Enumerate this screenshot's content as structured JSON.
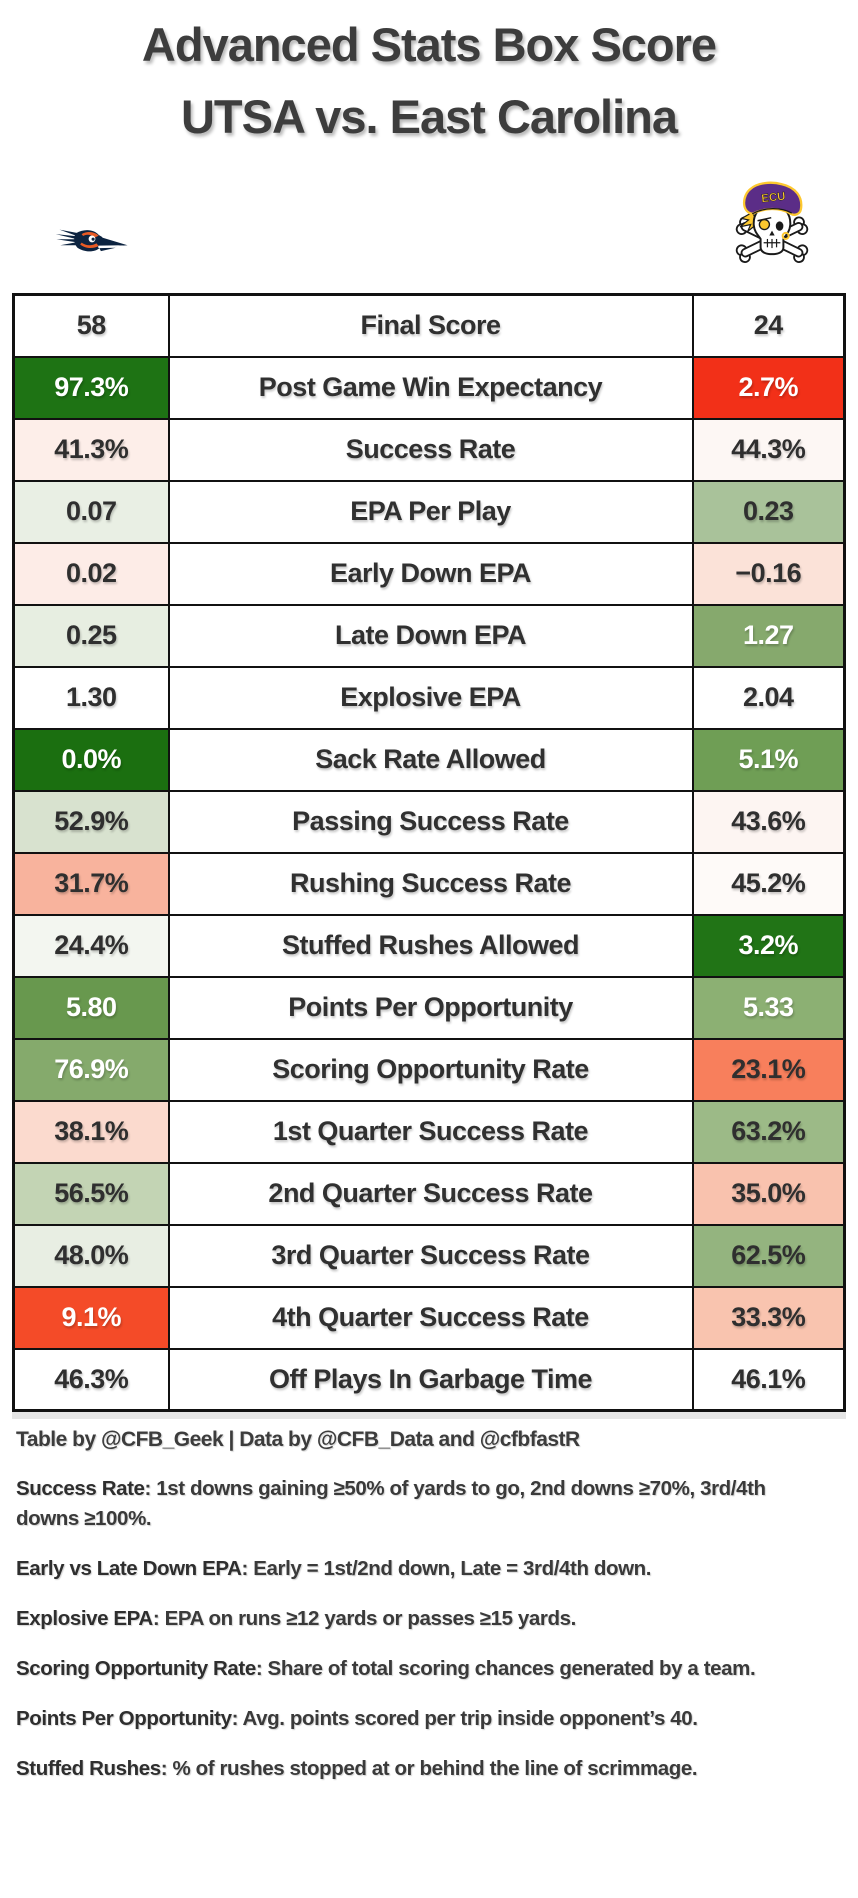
{
  "title": {
    "line1": "Advanced Stats Box Score",
    "line2": "UTSA vs. East Carolina"
  },
  "teams": {
    "left": "UTSA",
    "right": "East Carolina"
  },
  "credit": "Table by @CFB_Geek | Data by @CFB_Data and @cfbfastR",
  "colors": {
    "strong_green": "#1e7314",
    "strong_red": "#f23018",
    "orange_red": "#f44b28",
    "coral": "#f87f5c",
    "dark_text": "#2f2f2f",
    "white_text": "#ffffff",
    "border": "#111111"
  },
  "chart_data": {
    "type": "table",
    "title": "Advanced Stats Box Score — UTSA vs. East Carolina",
    "categories": [
      "Final Score",
      "Post Game Win Expectancy",
      "Success Rate",
      "EPA Per Play",
      "Early Down EPA",
      "Late Down EPA",
      "Explosive EPA",
      "Sack Rate Allowed",
      "Passing Success Rate",
      "Rushing Success Rate",
      "Stuffed Rushes Allowed",
      "Points Per Opportunity",
      "Scoring Opportunity Rate",
      "1st Quarter Success Rate",
      "2nd Quarter Success Rate",
      "3rd Quarter Success Rate",
      "4th Quarter Success Rate",
      "Off Plays In Garbage Time"
    ],
    "series": [
      {
        "name": "UTSA",
        "values": [
          "58",
          "97.3%",
          "41.3%",
          "0.07",
          "0.02",
          "0.25",
          "1.30",
          "0.0%",
          "52.9%",
          "31.7%",
          "24.4%",
          "5.80",
          "76.9%",
          "38.1%",
          "56.5%",
          "48.0%",
          "9.1%",
          "46.3%"
        ]
      },
      {
        "name": "East Carolina",
        "values": [
          "24",
          "2.7%",
          "44.3%",
          "0.23",
          "−0.16",
          "1.27",
          "2.04",
          "5.1%",
          "43.6%",
          "45.2%",
          "3.2%",
          "5.33",
          "23.1%",
          "63.2%",
          "35.0%",
          "62.5%",
          "33.3%",
          "46.1%"
        ]
      }
    ]
  },
  "table": {
    "rows": [
      {
        "label": "Final Score",
        "left": {
          "text": "58",
          "bg": "#ffffff",
          "fg": "#2f2f2f"
        },
        "right": {
          "text": "24",
          "bg": "#ffffff",
          "fg": "#2f2f2f"
        }
      },
      {
        "label": "Post Game Win Expectancy",
        "left": {
          "text": "97.3%",
          "bg": "#1e7314",
          "fg": "#ffffff"
        },
        "right": {
          "text": "2.7%",
          "bg": "#f23018",
          "fg": "#ffffff"
        }
      },
      {
        "label": "Success Rate",
        "left": {
          "text": "41.3%",
          "bg": "#fdeee9",
          "fg": "#2f2f2f"
        },
        "right": {
          "text": "44.3%",
          "bg": "#fdf7f4",
          "fg": "#2f2f2f"
        }
      },
      {
        "label": "EPA Per Play",
        "left": {
          "text": "0.07",
          "bg": "#e9efe4",
          "fg": "#2f2f2f"
        },
        "right": {
          "text": "0.23",
          "bg": "#a9c29a",
          "fg": "#2f2f2f"
        }
      },
      {
        "label": "Early Down EPA",
        "left": {
          "text": "0.02",
          "bg": "#fdece7",
          "fg": "#2f2f2f"
        },
        "right": {
          "text": "−0.16",
          "bg": "#fbe2d8",
          "fg": "#2f2f2f"
        }
      },
      {
        "label": "Late Down EPA",
        "left": {
          "text": "0.25",
          "bg": "#e7eee1",
          "fg": "#2f2f2f"
        },
        "right": {
          "text": "1.27",
          "bg": "#86a96d",
          "fg": "#ffffff"
        }
      },
      {
        "label": "Explosive EPA",
        "left": {
          "text": "1.30",
          "bg": "#ffffff",
          "fg": "#2f2f2f"
        },
        "right": {
          "text": "2.04",
          "bg": "#ffffff",
          "fg": "#2f2f2f"
        }
      },
      {
        "label": "Sack Rate Allowed",
        "left": {
          "text": "0.0%",
          "bg": "#1b6f10",
          "fg": "#ffffff"
        },
        "right": {
          "text": "5.1%",
          "bg": "#6f9e55",
          "fg": "#ffffff"
        }
      },
      {
        "label": "Passing Success Rate",
        "left": {
          "text": "52.9%",
          "bg": "#d8e2cf",
          "fg": "#2f2f2f"
        },
        "right": {
          "text": "43.6%",
          "bg": "#fdf5f2",
          "fg": "#2f2f2f"
        }
      },
      {
        "label": "Rushing Success Rate",
        "left": {
          "text": "31.7%",
          "bg": "#f8b39d",
          "fg": "#2f2f2f"
        },
        "right": {
          "text": "45.2%",
          "bg": "#fefaf8",
          "fg": "#2f2f2f"
        }
      },
      {
        "label": "Stuffed Rushes Allowed",
        "left": {
          "text": "24.4%",
          "bg": "#f3f6f0",
          "fg": "#2f2f2f"
        },
        "right": {
          "text": "3.2%",
          "bg": "#217416",
          "fg": "#ffffff"
        }
      },
      {
        "label": "Points Per Opportunity",
        "left": {
          "text": "5.80",
          "bg": "#68984e",
          "fg": "#ffffff"
        },
        "right": {
          "text": "5.33",
          "bg": "#8cb073",
          "fg": "#ffffff"
        }
      },
      {
        "label": "Scoring Opportunity Rate",
        "left": {
          "text": "76.9%",
          "bg": "#85aa6c",
          "fg": "#ffffff"
        },
        "right": {
          "text": "23.1%",
          "bg": "#f87f5c",
          "fg": "#2f2f2f"
        }
      },
      {
        "label": "1st Quarter Success Rate",
        "left": {
          "text": "38.1%",
          "bg": "#fbdace",
          "fg": "#2f2f2f"
        },
        "right": {
          "text": "63.2%",
          "bg": "#9cba87",
          "fg": "#2f2f2f"
        }
      },
      {
        "label": "2nd Quarter Success Rate",
        "left": {
          "text": "56.5%",
          "bg": "#c3d4b4",
          "fg": "#2f2f2f"
        },
        "right": {
          "text": "35.0%",
          "bg": "#f9c2ae",
          "fg": "#2f2f2f"
        }
      },
      {
        "label": "3rd Quarter Success Rate",
        "left": {
          "text": "48.0%",
          "bg": "#e8eee3",
          "fg": "#2f2f2f"
        },
        "right": {
          "text": "62.5%",
          "bg": "#94b47f",
          "fg": "#2f2f2f"
        }
      },
      {
        "label": "4th Quarter Success Rate",
        "left": {
          "text": "9.1%",
          "bg": "#f44b28",
          "fg": "#ffffff"
        },
        "right": {
          "text": "33.3%",
          "bg": "#f9c4af",
          "fg": "#2f2f2f"
        }
      },
      {
        "label": "Off Plays In Garbage Time",
        "left": {
          "text": "46.3%",
          "bg": "#ffffff",
          "fg": "#2f2f2f"
        },
        "right": {
          "text": "46.1%",
          "bg": "#ffffff",
          "fg": "#2f2f2f"
        }
      }
    ]
  },
  "notes": [
    {
      "term": "Success Rate",
      "rest": ": 1st downs gaining ≥50% of yards to go, 2nd downs ≥70%, 3rd/4th downs ≥100%."
    },
    {
      "term": "Early vs Late Down EPA",
      "rest": ": Early = 1st/2nd down, Late = 3rd/4th down."
    },
    {
      "term": "Explosive EPA",
      "rest": ": EPA on runs ≥12 yards or passes ≥15 yards."
    },
    {
      "term": "Scoring Opportunity Rate",
      "rest": ": Share of total scoring chances generated by a team."
    },
    {
      "term": "Points Per Opportunity",
      "rest": ": Avg. points scored per trip inside opponent’s 40."
    },
    {
      "term": "Stuffed Rushes",
      "rest": ": % of rushes stopped at or behind the line of scrimmage."
    }
  ]
}
